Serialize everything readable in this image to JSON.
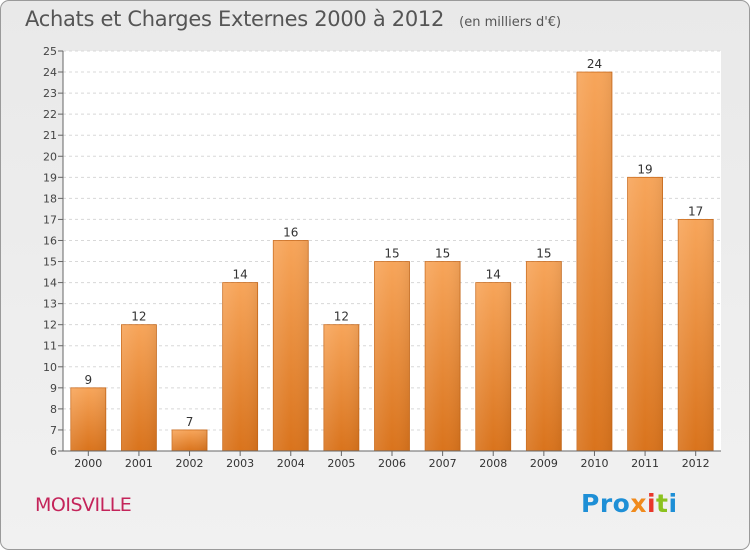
{
  "header": {
    "title": "Achats et Charges Externes 2000 à 2012",
    "unit": "(en milliers d'€)"
  },
  "town": "MOISVILLE",
  "logo": {
    "text": "Proxiti",
    "colors": [
      "#1e8fd6",
      "#f08a1c",
      "#e8372a",
      "#8bc21e",
      "#1e8fd6"
    ]
  },
  "chart_data": {
    "type": "bar",
    "title": "Achats et Charges Externes 2000 à 2012",
    "subtitle": "(en milliers d'€)",
    "categories": [
      "2000",
      "2001",
      "2002",
      "2003",
      "2004",
      "2005",
      "2006",
      "2007",
      "2008",
      "2009",
      "2010",
      "2011",
      "2012"
    ],
    "values": [
      9,
      12,
      7,
      14,
      16,
      12,
      15,
      15,
      14,
      15,
      24,
      19,
      17
    ],
    "ylim": [
      6,
      25
    ],
    "yticks": [
      6,
      7,
      8,
      9,
      10,
      11,
      12,
      13,
      14,
      15,
      16,
      17,
      18,
      19,
      20,
      21,
      22,
      23,
      24,
      25
    ],
    "grid": "horizontal dashed",
    "bar_color_top": "#f7a55a",
    "bar_color_bottom": "#d9731c",
    "show_data_labels": true
  }
}
